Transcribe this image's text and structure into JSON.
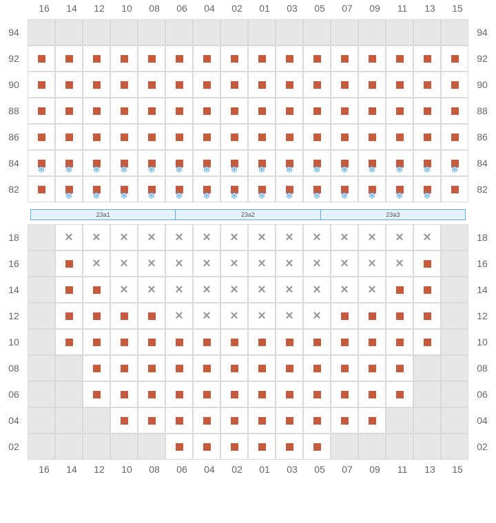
{
  "columns": [
    "16",
    "14",
    "12",
    "10",
    "08",
    "06",
    "04",
    "02",
    "01",
    "03",
    "05",
    "07",
    "09",
    "11",
    "13",
    "15"
  ],
  "upper": {
    "rows": [
      "94",
      "92",
      "90",
      "88",
      "86",
      "84",
      "82"
    ],
    "cells": [
      [
        "v",
        "v",
        "v",
        "v",
        "v",
        "v",
        "v",
        "v",
        "v",
        "v",
        "v",
        "v",
        "v",
        "v",
        "v",
        "v"
      ],
      [
        "s",
        "s",
        "s",
        "s",
        "s",
        "s",
        "s",
        "s",
        "s",
        "s",
        "s",
        "s",
        "s",
        "s",
        "s",
        "s"
      ],
      [
        "s",
        "s",
        "s",
        "s",
        "s",
        "s",
        "s",
        "s",
        "s",
        "s",
        "s",
        "s",
        "s",
        "s",
        "s",
        "s"
      ],
      [
        "s",
        "s",
        "s",
        "s",
        "s",
        "s",
        "s",
        "s",
        "s",
        "s",
        "s",
        "s",
        "s",
        "s",
        "s",
        "s"
      ],
      [
        "s",
        "s",
        "s",
        "s",
        "s",
        "s",
        "s",
        "s",
        "s",
        "s",
        "s",
        "s",
        "s",
        "s",
        "s",
        "s"
      ],
      [
        "sf",
        "sf",
        "sf",
        "sf",
        "sf",
        "sf",
        "sf",
        "sf",
        "sf",
        "sf",
        "sf",
        "sf",
        "sf",
        "sf",
        "sf",
        "sf"
      ],
      [
        "s",
        "sf",
        "sf",
        "sf",
        "sf",
        "sf",
        "sf",
        "sf",
        "sf",
        "sf",
        "sf",
        "sf",
        "sf",
        "sf",
        "sf",
        "s"
      ]
    ]
  },
  "stage": [
    "23a1",
    "23a2",
    "23a3"
  ],
  "lower": {
    "rows": [
      "18",
      "16",
      "14",
      "12",
      "10",
      "08",
      "06",
      "04",
      "02"
    ],
    "cells": [
      [
        "v",
        "x",
        "x",
        "x",
        "x",
        "x",
        "x",
        "x",
        "x",
        "x",
        "x",
        "x",
        "x",
        "x",
        "x",
        "v"
      ],
      [
        "v",
        "s",
        "x",
        "x",
        "x",
        "x",
        "x",
        "x",
        "x",
        "x",
        "x",
        "x",
        "x",
        "x",
        "s",
        "v"
      ],
      [
        "v",
        "s",
        "s",
        "x",
        "x",
        "x",
        "x",
        "x",
        "x",
        "x",
        "x",
        "x",
        "x",
        "s",
        "s",
        "v"
      ],
      [
        "v",
        "s",
        "s",
        "s",
        "s",
        "x",
        "x",
        "x",
        "x",
        "x",
        "x",
        "s",
        "s",
        "s",
        "s",
        "v"
      ],
      [
        "v",
        "s",
        "s",
        "s",
        "s",
        "s",
        "s",
        "s",
        "s",
        "s",
        "s",
        "s",
        "s",
        "s",
        "s",
        "v"
      ],
      [
        "v",
        "v",
        "s",
        "s",
        "s",
        "s",
        "s",
        "s",
        "s",
        "s",
        "s",
        "s",
        "s",
        "s",
        "v",
        "v"
      ],
      [
        "v",
        "v",
        "s",
        "s",
        "s",
        "s",
        "s",
        "s",
        "s",
        "s",
        "s",
        "s",
        "s",
        "s",
        "v",
        "v"
      ],
      [
        "v",
        "v",
        "v",
        "s",
        "s",
        "s",
        "s",
        "s",
        "s",
        "s",
        "s",
        "s",
        "s",
        "v",
        "v",
        "v"
      ],
      [
        "v",
        "v",
        "v",
        "v",
        "v",
        "s",
        "s",
        "s",
        "s",
        "s",
        "s",
        "v",
        "v",
        "v",
        "v",
        "v"
      ]
    ]
  },
  "colors": {
    "seat": "#c55a3d",
    "snow": "#5aa9e6",
    "void": "#e6e6e6",
    "grid": "#d9d9d9",
    "text": "#666666"
  }
}
